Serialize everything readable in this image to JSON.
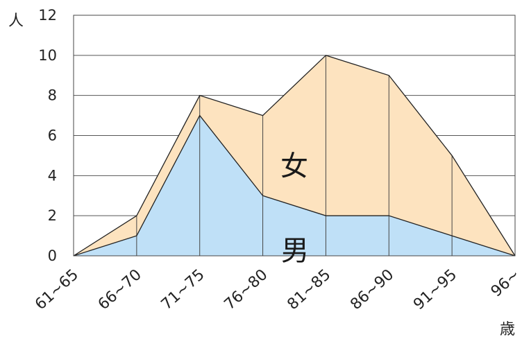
{
  "chart_data": {
    "type": "area",
    "stacked": true,
    "categories": [
      "61~65",
      "66~70",
      "71~75",
      "76~80",
      "81~85",
      "86~90",
      "91~95",
      "96~"
    ],
    "series": [
      {
        "name": "男",
        "values": [
          0,
          1,
          7,
          3,
          2,
          2,
          1,
          0
        ],
        "color": "#bfe0f7"
      },
      {
        "name": "女",
        "values": [
          0,
          1,
          1,
          4,
          8,
          7,
          4,
          0
        ],
        "color": "#fde3bf"
      }
    ],
    "ylabel": "人",
    "xlabel": "歳",
    "ylim": [
      0,
      12
    ],
    "yticks": [
      0,
      2,
      4,
      6,
      8,
      10,
      12
    ],
    "grid": true,
    "legend": "none"
  }
}
